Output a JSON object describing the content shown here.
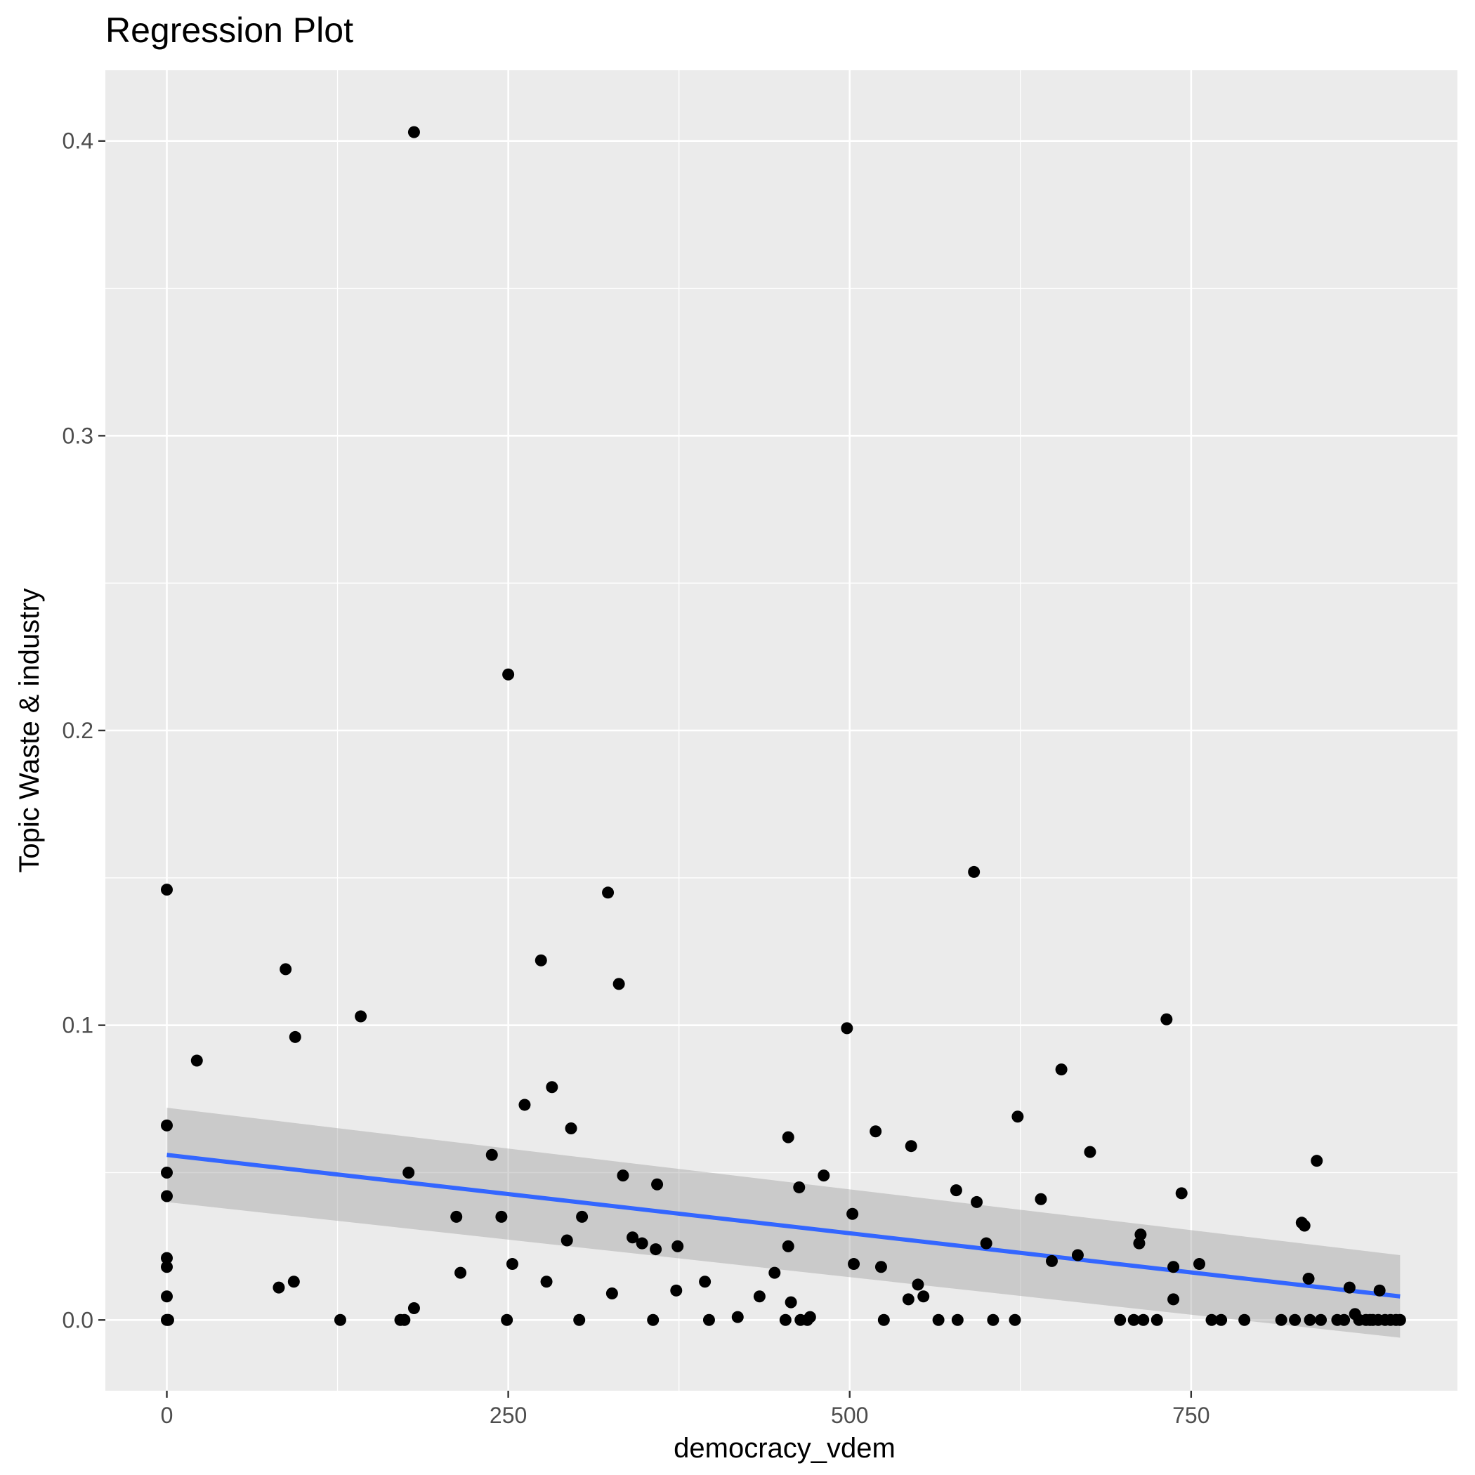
{
  "chart_data": {
    "type": "scatter",
    "title": "Regression Plot",
    "xlabel": "democracy_vdem",
    "ylabel": "Topic Waste & industry",
    "xlim": [
      -45,
      945
    ],
    "ylim": [
      -0.024,
      0.424
    ],
    "xticks": [
      0,
      250,
      500,
      750
    ],
    "xtick_labels": [
      "0",
      "250",
      "500",
      "750"
    ],
    "yticks": [
      0.0,
      0.1,
      0.2,
      0.3,
      0.4
    ],
    "ytick_labels": [
      "0.0",
      "0.1",
      "0.2",
      "0.3",
      "0.4"
    ],
    "grid": true,
    "legend": "none",
    "point_color": "#000000",
    "line_color": "#3366FF",
    "ribbon_color": "#999999",
    "panel_background": "#EBEBEB",
    "grid_color": "#FFFFFF",
    "regression_line": {
      "x": [
        0,
        903
      ],
      "y": [
        0.056,
        0.008
      ]
    },
    "confidence_band": {
      "x": [
        0,
        903
      ],
      "lower": [
        0.04,
        -0.006
      ],
      "upper": [
        0.072,
        0.022
      ]
    },
    "points": [
      [
        0,
        0.146
      ],
      [
        0,
        0.066
      ],
      [
        0,
        0.05
      ],
      [
        0,
        0.042
      ],
      [
        0,
        0.021
      ],
      [
        0,
        0.018
      ],
      [
        0,
        0.008
      ],
      [
        0,
        0.0
      ],
      [
        1,
        0.0
      ],
      [
        22,
        0.088
      ],
      [
        82,
        0.011
      ],
      [
        87,
        0.119
      ],
      [
        93,
        0.013
      ],
      [
        94,
        0.096
      ],
      [
        127,
        0.0
      ],
      [
        142,
        0.103
      ],
      [
        171,
        0.0
      ],
      [
        174,
        0.0
      ],
      [
        177,
        0.05
      ],
      [
        181,
        0.004
      ],
      [
        181,
        0.403
      ],
      [
        212,
        0.035
      ],
      [
        215,
        0.016
      ],
      [
        238,
        0.056
      ],
      [
        245,
        0.035
      ],
      [
        249,
        0.0
      ],
      [
        250,
        0.219
      ],
      [
        253,
        0.019
      ],
      [
        262,
        0.073
      ],
      [
        274,
        0.122
      ],
      [
        278,
        0.013
      ],
      [
        282,
        0.079
      ],
      [
        293,
        0.027
      ],
      [
        296,
        0.065
      ],
      [
        302,
        0.0
      ],
      [
        304,
        0.035
      ],
      [
        323,
        0.145
      ],
      [
        326,
        0.009
      ],
      [
        331,
        0.114
      ],
      [
        334,
        0.049
      ],
      [
        341,
        0.028
      ],
      [
        348,
        0.026
      ],
      [
        356,
        0.0
      ],
      [
        358,
        0.024
      ],
      [
        359,
        0.046
      ],
      [
        373,
        0.01
      ],
      [
        374,
        0.025
      ],
      [
        394,
        0.013
      ],
      [
        397,
        0.0
      ],
      [
        418,
        0.001
      ],
      [
        434,
        0.008
      ],
      [
        445,
        0.016
      ],
      [
        453,
        0.0
      ],
      [
        455,
        0.025
      ],
      [
        455,
        0.062
      ],
      [
        457,
        0.006
      ],
      [
        463,
        0.045
      ],
      [
        464,
        0.0
      ],
      [
        469,
        0.0
      ],
      [
        471,
        0.001
      ],
      [
        481,
        0.049
      ],
      [
        498,
        0.099
      ],
      [
        502,
        0.036
      ],
      [
        503,
        0.019
      ],
      [
        519,
        0.064
      ],
      [
        523,
        0.018
      ],
      [
        525,
        0.0
      ],
      [
        543,
        0.007
      ],
      [
        545,
        0.059
      ],
      [
        550,
        0.012
      ],
      [
        554,
        0.008
      ],
      [
        565,
        0.0
      ],
      [
        578,
        0.044
      ],
      [
        579,
        0.0
      ],
      [
        591,
        0.152
      ],
      [
        593,
        0.04
      ],
      [
        600,
        0.026
      ],
      [
        605,
        0.0
      ],
      [
        621,
        0.0
      ],
      [
        623,
        0.069
      ],
      [
        640,
        0.041
      ],
      [
        648,
        0.02
      ],
      [
        655,
        0.085
      ],
      [
        667,
        0.022
      ],
      [
        676,
        0.057
      ],
      [
        698,
        0.0
      ],
      [
        708,
        0.0
      ],
      [
        712,
        0.026
      ],
      [
        713,
        0.029
      ],
      [
        715,
        0.0
      ],
      [
        725,
        0.0
      ],
      [
        732,
        0.102
      ],
      [
        737,
        0.018
      ],
      [
        737,
        0.007
      ],
      [
        743,
        0.043
      ],
      [
        756,
        0.019
      ],
      [
        765,
        0.0
      ],
      [
        772,
        0.0
      ],
      [
        789,
        0.0
      ],
      [
        816,
        0.0
      ],
      [
        826,
        0.0
      ],
      [
        831,
        0.033
      ],
      [
        833,
        0.032
      ],
      [
        836,
        0.014
      ],
      [
        837,
        0.0
      ],
      [
        842,
        0.054
      ],
      [
        845,
        0.0
      ],
      [
        857,
        0.0
      ],
      [
        862,
        0.0
      ],
      [
        866,
        0.011
      ],
      [
        870,
        0.002
      ],
      [
        873,
        0.0
      ],
      [
        878,
        0.0
      ],
      [
        881,
        0.0
      ],
      [
        883,
        0.0
      ],
      [
        887,
        0.0
      ],
      [
        888,
        0.01
      ],
      [
        892,
        0.0
      ],
      [
        896,
        0.0
      ],
      [
        900,
        0.0
      ],
      [
        903,
        0.0
      ]
    ]
  }
}
